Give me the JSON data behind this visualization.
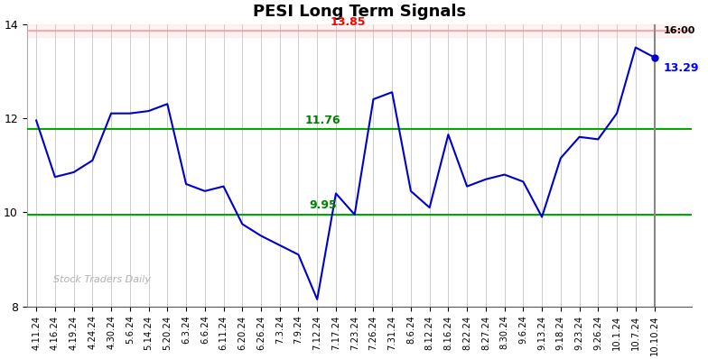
{
  "title": "PESI Long Term Signals",
  "x_labels": [
    "4.11.24",
    "4.16.24",
    "4.19.24",
    "4.24.24",
    "4.30.24",
    "5.6.24",
    "5.14.24",
    "5.20.24",
    "6.3.24",
    "6.6.24",
    "6.11.24",
    "6.20.24",
    "6.26.24",
    "7.3.24",
    "7.9.24",
    "7.12.24",
    "7.17.24",
    "7.23.24",
    "7.26.24",
    "7.31.24",
    "8.6.24",
    "8.12.24",
    "8.16.24",
    "8.22.24",
    "8.27.24",
    "8.30.24",
    "9.6.24",
    "9.13.24",
    "9.18.24",
    "9.23.24",
    "9.26.24",
    "10.1.24",
    "10.7.24",
    "10.10.24"
  ],
  "y_values": [
    11.95,
    10.75,
    10.85,
    11.1,
    12.1,
    12.1,
    12.15,
    12.3,
    10.6,
    10.45,
    10.55,
    9.75,
    9.5,
    9.3,
    9.1,
    8.15,
    10.4,
    9.95,
    12.4,
    12.55,
    10.45,
    10.1,
    11.65,
    10.55,
    10.7,
    10.8,
    10.65,
    9.9,
    11.15,
    11.6,
    11.55,
    12.1,
    13.5,
    13.29
  ],
  "red_line": 13.85,
  "green_line_upper": 11.76,
  "green_line_lower": 9.95,
  "red_label": "13.85",
  "green_upper_label": "11.76",
  "green_lower_label": "9.95",
  "last_price_label": "13.29",
  "last_time_label": "16:00",
  "line_color": "#0000cc",
  "red_line_color": "#ffaaaa",
  "green_line_color": "#00aa00",
  "watermark": "Stock Traders Daily",
  "ylim_min": 8,
  "ylim_max": 14,
  "yticks": [
    8,
    10,
    12,
    14
  ],
  "background_color": "#ffffff",
  "plot_bg_color": "#ffffff"
}
